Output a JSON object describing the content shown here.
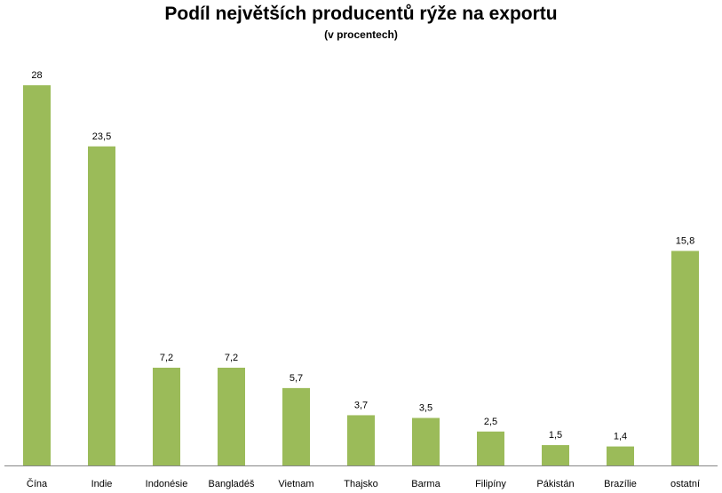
{
  "chart_data": {
    "type": "bar",
    "title": "Podíl největších producentů rýže na exportu",
    "subtitle": "(v procentech)",
    "categories": [
      "Čína",
      "Indie",
      "Indonésie",
      "Bangladéš",
      "Vietnam",
      "Thajsko",
      "Barma",
      "Filipíny",
      "Pákistán",
      "Brazílie",
      "ostatní"
    ],
    "values": [
      28,
      23.5,
      7.2,
      7.2,
      5.7,
      3.7,
      3.5,
      2.5,
      1.5,
      1.4,
      15.8
    ],
    "value_labels": [
      "28",
      "23,5",
      "7,2",
      "7,2",
      "5,7",
      "3,7",
      "3,5",
      "2,5",
      "1,5",
      "1,4",
      "15,8"
    ],
    "xlabel": "",
    "ylabel": "",
    "ylim": [
      0,
      28
    ],
    "grid": false,
    "legend": "none",
    "bar_color": "#9BBB59",
    "axis_color": "#868686"
  }
}
